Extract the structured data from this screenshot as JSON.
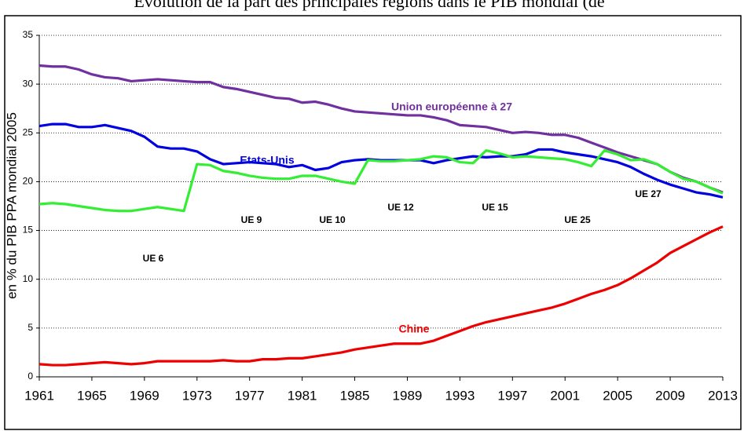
{
  "chart_data": {
    "type": "line",
    "title": "Évolution de la part des principales régions dans le PIB mondial (de",
    "y_label": "en % du PIB PPA mondial 2005",
    "x": [
      1961,
      1962,
      1963,
      1964,
      1965,
      1966,
      1967,
      1968,
      1969,
      1970,
      1971,
      1972,
      1973,
      1974,
      1975,
      1976,
      1977,
      1978,
      1979,
      1980,
      1981,
      1982,
      1983,
      1984,
      1985,
      1986,
      1987,
      1988,
      1989,
      1990,
      1991,
      1992,
      1993,
      1994,
      1995,
      1996,
      1997,
      1998,
      1999,
      2000,
      2001,
      2002,
      2003,
      2004,
      2005,
      2006,
      2007,
      2008,
      2009,
      2010,
      2011,
      2012,
      2013
    ],
    "xlim": [
      1961,
      2013
    ],
    "xticks": [
      1961,
      1965,
      1969,
      1973,
      1977,
      1981,
      1985,
      1989,
      1993,
      1997,
      2001,
      2005,
      2009,
      2013
    ],
    "ylim": [
      0,
      35
    ],
    "yticks": [
      0,
      5,
      10,
      15,
      20,
      25,
      30,
      35
    ],
    "grid": true,
    "series": [
      {
        "name": "Union européenne à 27",
        "color": "#7030a0",
        "values": [
          31.9,
          31.8,
          31.8,
          31.5,
          31.0,
          30.7,
          30.6,
          30.3,
          30.4,
          30.5,
          30.4,
          30.3,
          30.2,
          30.2,
          29.7,
          29.5,
          29.2,
          28.9,
          28.6,
          28.5,
          28.1,
          28.2,
          27.9,
          27.5,
          27.2,
          27.1,
          27.0,
          26.9,
          26.8,
          26.8,
          26.6,
          26.3,
          25.8,
          25.7,
          25.6,
          25.3,
          25.0,
          25.1,
          25.0,
          24.8,
          24.8,
          24.5,
          24.0,
          23.5,
          23.0,
          22.6,
          22.2,
          21.8,
          21.0,
          20.4,
          20.0,
          19.4,
          18.9
        ]
      },
      {
        "name": "Etats-Unis",
        "color": "#0000e0",
        "values": [
          25.7,
          25.9,
          25.9,
          25.6,
          25.6,
          25.8,
          25.5,
          25.2,
          24.6,
          23.6,
          23.4,
          23.4,
          23.1,
          22.3,
          21.8,
          21.9,
          22.0,
          21.9,
          21.8,
          21.5,
          21.7,
          21.2,
          21.4,
          22.0,
          22.2,
          22.3,
          22.2,
          22.2,
          22.2,
          22.2,
          21.9,
          22.2,
          22.4,
          22.6,
          22.5,
          22.6,
          22.6,
          22.8,
          23.3,
          23.3,
          23.0,
          22.8,
          22.6,
          22.3,
          22.0,
          21.5,
          20.8,
          20.2,
          19.7,
          19.3,
          18.9,
          18.7,
          18.4
        ]
      },
      {
        "color": "#33ee33",
        "values": [
          17.7,
          17.8,
          17.7,
          17.5,
          17.3,
          17.1,
          17.0,
          17.0,
          17.2,
          17.4,
          17.2,
          17.0,
          21.8,
          21.7,
          21.1,
          20.9,
          20.6,
          20.4,
          20.3,
          20.3,
          20.6,
          20.6,
          20.3,
          20.0,
          19.8,
          22.2,
          22.1,
          22.1,
          22.2,
          22.3,
          22.6,
          22.5,
          22.0,
          21.9,
          23.2,
          22.9,
          22.5,
          22.6,
          22.5,
          22.4,
          22.3,
          22.0,
          21.6,
          23.2,
          22.8,
          22.2,
          22.3,
          21.8,
          21.0,
          20.3,
          20.0,
          19.4,
          18.8
        ]
      },
      {
        "name": "Chine",
        "color": "#ee0000",
        "values": [
          1.3,
          1.2,
          1.2,
          1.3,
          1.4,
          1.5,
          1.4,
          1.3,
          1.4,
          1.6,
          1.6,
          1.6,
          1.6,
          1.6,
          1.7,
          1.6,
          1.6,
          1.8,
          1.8,
          1.9,
          1.9,
          2.1,
          2.3,
          2.5,
          2.8,
          3.0,
          3.2,
          3.4,
          3.4,
          3.4,
          3.7,
          4.2,
          4.7,
          5.2,
          5.6,
          5.9,
          6.2,
          6.5,
          6.8,
          7.1,
          7.5,
          8.0,
          8.5,
          8.9,
          9.4,
          10.1,
          10.9,
          11.7,
          12.7,
          13.4,
          14.1,
          14.8,
          15.4
        ]
      }
    ],
    "annotations": [
      "UE 6",
      "UE 9",
      "UE 10",
      "UE 12",
      "UE 15",
      "UE 25",
      "UE 27"
    ]
  }
}
